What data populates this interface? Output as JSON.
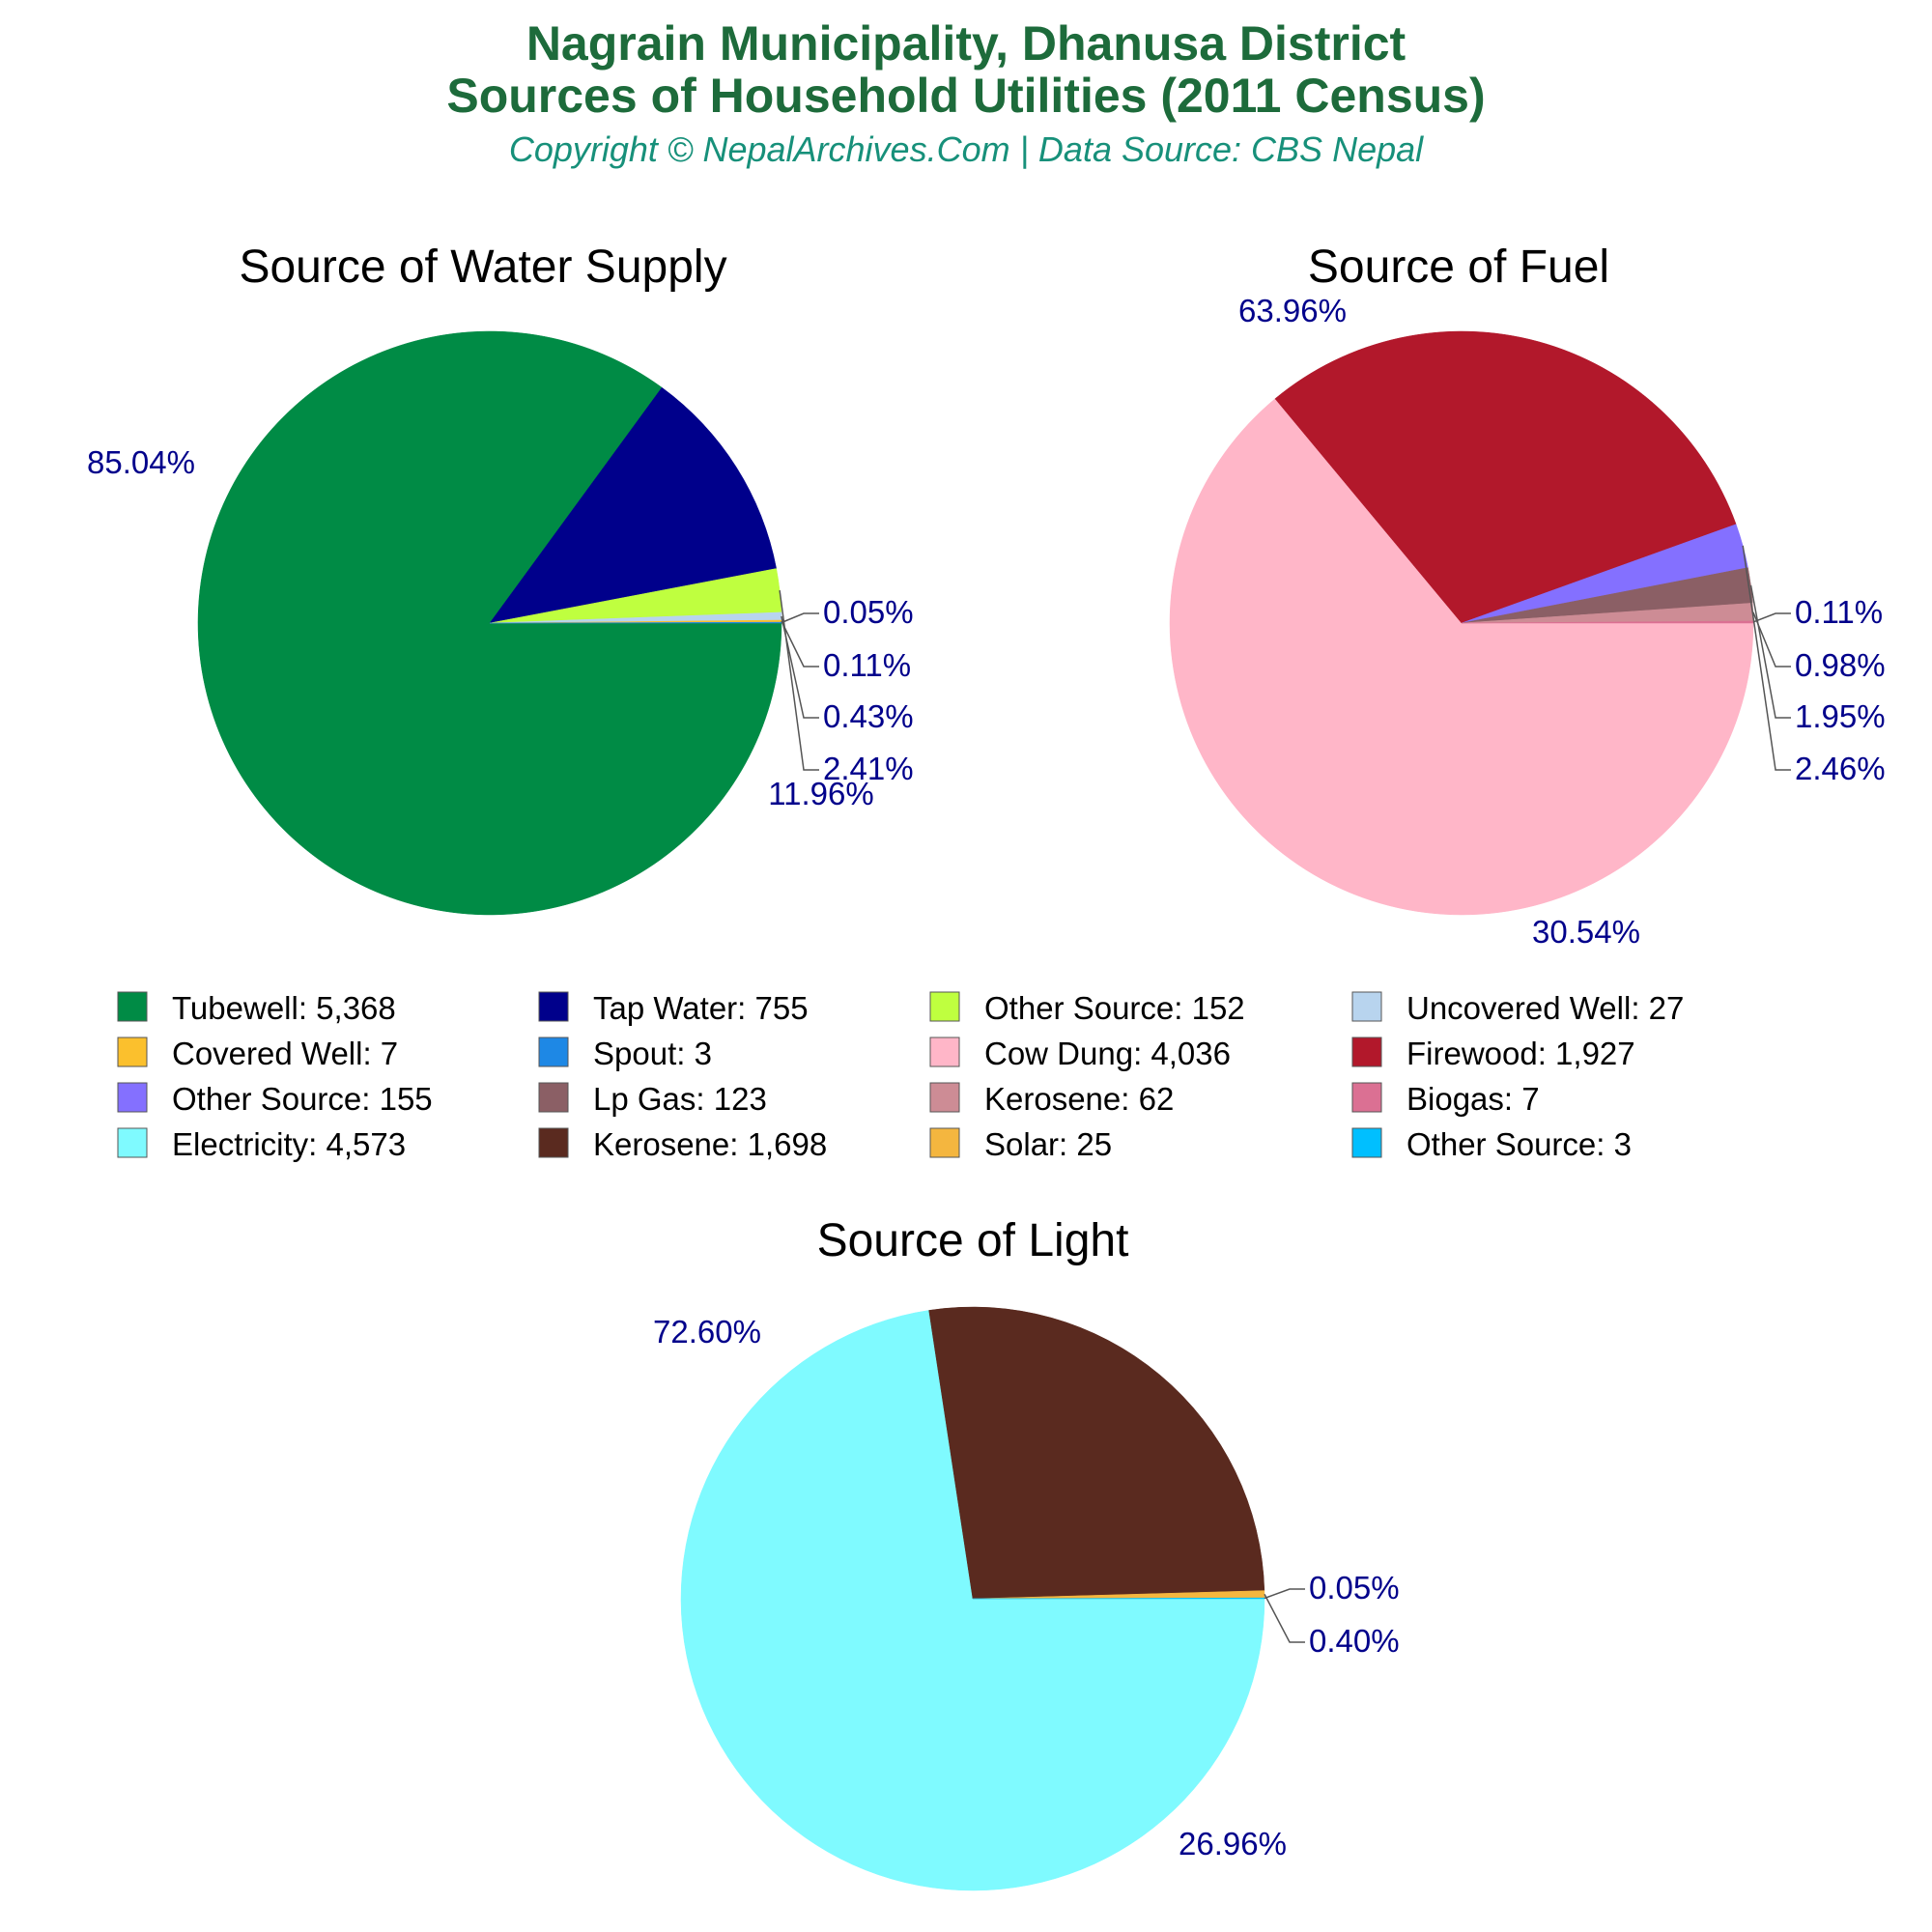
{
  "header": {
    "title_line1": "Nagrain Municipality, Dhanusa District",
    "title_line2": "Sources of Household Utilities (2011 Census)",
    "subtitle": "Copyright © NepalArchives.Com | Data Source: CBS Nepal"
  },
  "chart_data": [
    {
      "type": "pie",
      "title": "Source of Water Supply",
      "slices": [
        {
          "label": "Tubewell",
          "value": 5368,
          "display": "5,368",
          "percent": "85.04%",
          "color": "#008b45"
        },
        {
          "label": "Tap Water",
          "value": 755,
          "display": "755",
          "percent": "11.96%",
          "color": "#00008b"
        },
        {
          "label": "Other Source",
          "value": 152,
          "display": "152",
          "percent": "2.41%",
          "color": "#bfff3f"
        },
        {
          "label": "Uncovered Well",
          "value": 27,
          "display": "27",
          "percent": "0.43%",
          "color": "#b8d4ee"
        },
        {
          "label": "Covered Well",
          "value": 7,
          "display": "7",
          "percent": "0.11%",
          "color": "#fbc02d"
        },
        {
          "label": "Spout",
          "value": 3,
          "display": "3",
          "percent": "0.05%",
          "color": "#1e88e5"
        }
      ]
    },
    {
      "type": "pie",
      "title": "Source of Fuel",
      "slices": [
        {
          "label": "Cow Dung",
          "value": 4036,
          "display": "4,036",
          "percent": "63.96%",
          "color": "#ffb6c8"
        },
        {
          "label": "Firewood",
          "value": 1927,
          "display": "1,927",
          "percent": "30.54%",
          "color": "#b2182b"
        },
        {
          "label": "Other Source",
          "value": 155,
          "display": "155",
          "percent": "2.46%",
          "color": "#8470ff"
        },
        {
          "label": "Lp Gas",
          "value": 123,
          "display": "123",
          "percent": "1.95%",
          "color": "#8b5f65"
        },
        {
          "label": "Kerosene",
          "value": 62,
          "display": "62",
          "percent": "0.98%",
          "color": "#cd8c95"
        },
        {
          "label": "Biogas",
          "value": 7,
          "display": "7",
          "percent": "0.11%",
          "color": "#db7093"
        }
      ]
    },
    {
      "type": "pie",
      "title": "Source of Light",
      "slices": [
        {
          "label": "Electricity",
          "value": 4573,
          "display": "4,573",
          "percent": "72.60%",
          "color": "#7ffaff"
        },
        {
          "label": "Kerosene",
          "value": 1698,
          "display": "1,698",
          "percent": "26.96%",
          "color": "#5a2a1f"
        },
        {
          "label": "Solar",
          "value": 25,
          "display": "25",
          "percent": "0.40%",
          "color": "#f4b63f"
        },
        {
          "label": "Other Source",
          "value": 3,
          "display": "3",
          "percent": "0.05%",
          "color": "#00bfff"
        }
      ]
    }
  ],
  "legend": [
    {
      "text": "Tubewell: 5,368",
      "color": "#008b45"
    },
    {
      "text": "Tap Water: 755",
      "color": "#00008b"
    },
    {
      "text": "Other Source: 152",
      "color": "#bfff3f"
    },
    {
      "text": "Uncovered Well: 27",
      "color": "#b8d4ee"
    },
    {
      "text": "Covered Well: 7",
      "color": "#fbc02d"
    },
    {
      "text": "Spout: 3",
      "color": "#1e88e5"
    },
    {
      "text": "Cow Dung: 4,036",
      "color": "#ffb6c8"
    },
    {
      "text": "Firewood: 1,927",
      "color": "#b2182b"
    },
    {
      "text": "Other Source: 155",
      "color": "#8470ff"
    },
    {
      "text": "Lp Gas: 123",
      "color": "#8b5f65"
    },
    {
      "text": "Kerosene: 62",
      "color": "#cd8c95"
    },
    {
      "text": "Biogas: 7",
      "color": "#db7093"
    },
    {
      "text": "Electricity: 4,573",
      "color": "#7ffaff"
    },
    {
      "text": "Kerosene: 1,698",
      "color": "#5a2a1f"
    },
    {
      "text": "Solar: 25",
      "color": "#f4b63f"
    },
    {
      "text": "Other Source: 3",
      "color": "#00bfff"
    }
  ]
}
